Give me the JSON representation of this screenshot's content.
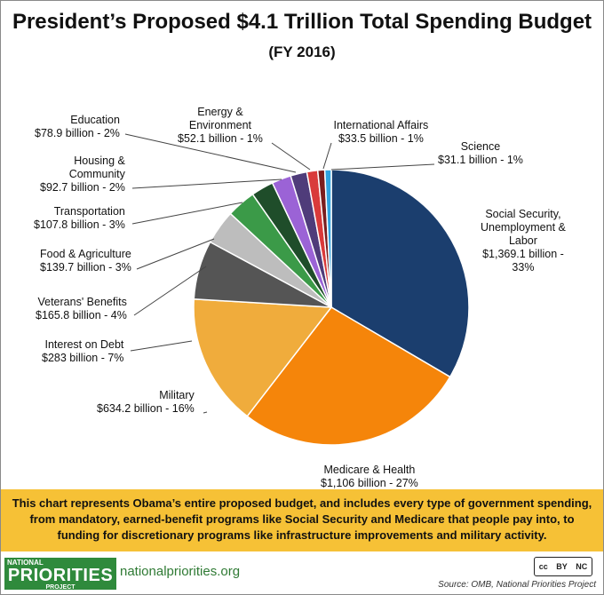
{
  "header": {
    "title": "President’s Proposed $4.1 Trillion Total Spending Budget",
    "subtitle": "(FY 2016)"
  },
  "chart_data": {
    "type": "pie",
    "title": "President’s Proposed $4.1 Trillion Total Spending Budget",
    "subtitle": "(FY 2016)",
    "unit": "billion",
    "slices": [
      {
        "name": "Social Security, Unemployment & Labor",
        "value": 1369.1,
        "percent": 33,
        "color": "#1b3e6e",
        "label_lines": [
          "Social Security,",
          "Unemployment &",
          "Labor",
          "$1,369.1 billion -",
          "33%"
        ]
      },
      {
        "name": "Medicare & Health",
        "value": 1106,
        "percent": 27,
        "color": "#f5850a",
        "label_lines": [
          "Medicare & Health",
          "$1,106 billion - 27%"
        ]
      },
      {
        "name": "Military",
        "value": 634.2,
        "percent": 16,
        "color": "#f0ac3c",
        "label_lines": [
          "Military",
          "$634.2 billion - 16%"
        ]
      },
      {
        "name": "Interest on Debt",
        "value": 283,
        "percent": 7,
        "color": "#555555",
        "label_lines": [
          "Interest on Debt",
          "$283 billion - 7%"
        ]
      },
      {
        "name": "Veterans' Benefits",
        "value": 165.8,
        "percent": 4,
        "color": "#bdbdbd",
        "label_lines": [
          "Veterans' Benefits",
          "$165.8 billion - 4%"
        ]
      },
      {
        "name": "Food & Agriculture",
        "value": 139.7,
        "percent": 3,
        "color": "#3b9a48",
        "label_lines": [
          "Food & Agriculture",
          "$139.7 billion - 3%"
        ]
      },
      {
        "name": "Transportation",
        "value": 107.8,
        "percent": 3,
        "color": "#1f4d2a",
        "label_lines": [
          "Transportation",
          "$107.8 billion - 3%"
        ]
      },
      {
        "name": "Housing & Community",
        "value": 92.7,
        "percent": 2,
        "color": "#9b63d6",
        "label_lines": [
          "Housing &",
          "Community",
          "$92.7 billion - 2%"
        ]
      },
      {
        "name": "Education",
        "value": 78.9,
        "percent": 2,
        "color": "#4f3c7a",
        "label_lines": [
          "Education",
          "$78.9 billion - 2%"
        ]
      },
      {
        "name": "Energy & Environment",
        "value": 52.1,
        "percent": 1,
        "color": "#d93a3a",
        "label_lines": [
          "Energy &",
          "Environment",
          "$52.1 billion - 1%"
        ]
      },
      {
        "name": "International Affairs",
        "value": 33.5,
        "percent": 1,
        "color": "#7a1e1e",
        "label_lines": [
          "International  Affairs",
          "$33.5 billion - 1%"
        ]
      },
      {
        "name": "Science",
        "value": 31.1,
        "percent": 1,
        "color": "#2fa3e0",
        "label_lines": [
          "Science",
          "$31.1 billion - 1%"
        ]
      }
    ]
  },
  "note": {
    "text": "This chart represents Obama’s entire proposed budget, and includes every type of government spending, from mandatory, earned-benefit programs like Social Security and Medicare that people pay into, to funding for discretionary programs like infrastructure improvements and military activity."
  },
  "footer": {
    "logo_top": "NATIONAL",
    "logo_main": "PRIORITIES",
    "logo_bottom": "PROJECT",
    "website": "nationalpriorities.org",
    "license": {
      "cc": "cc",
      "by": "BY",
      "nc": "NC"
    },
    "source": "Source: OMB, National Priorities Project"
  }
}
